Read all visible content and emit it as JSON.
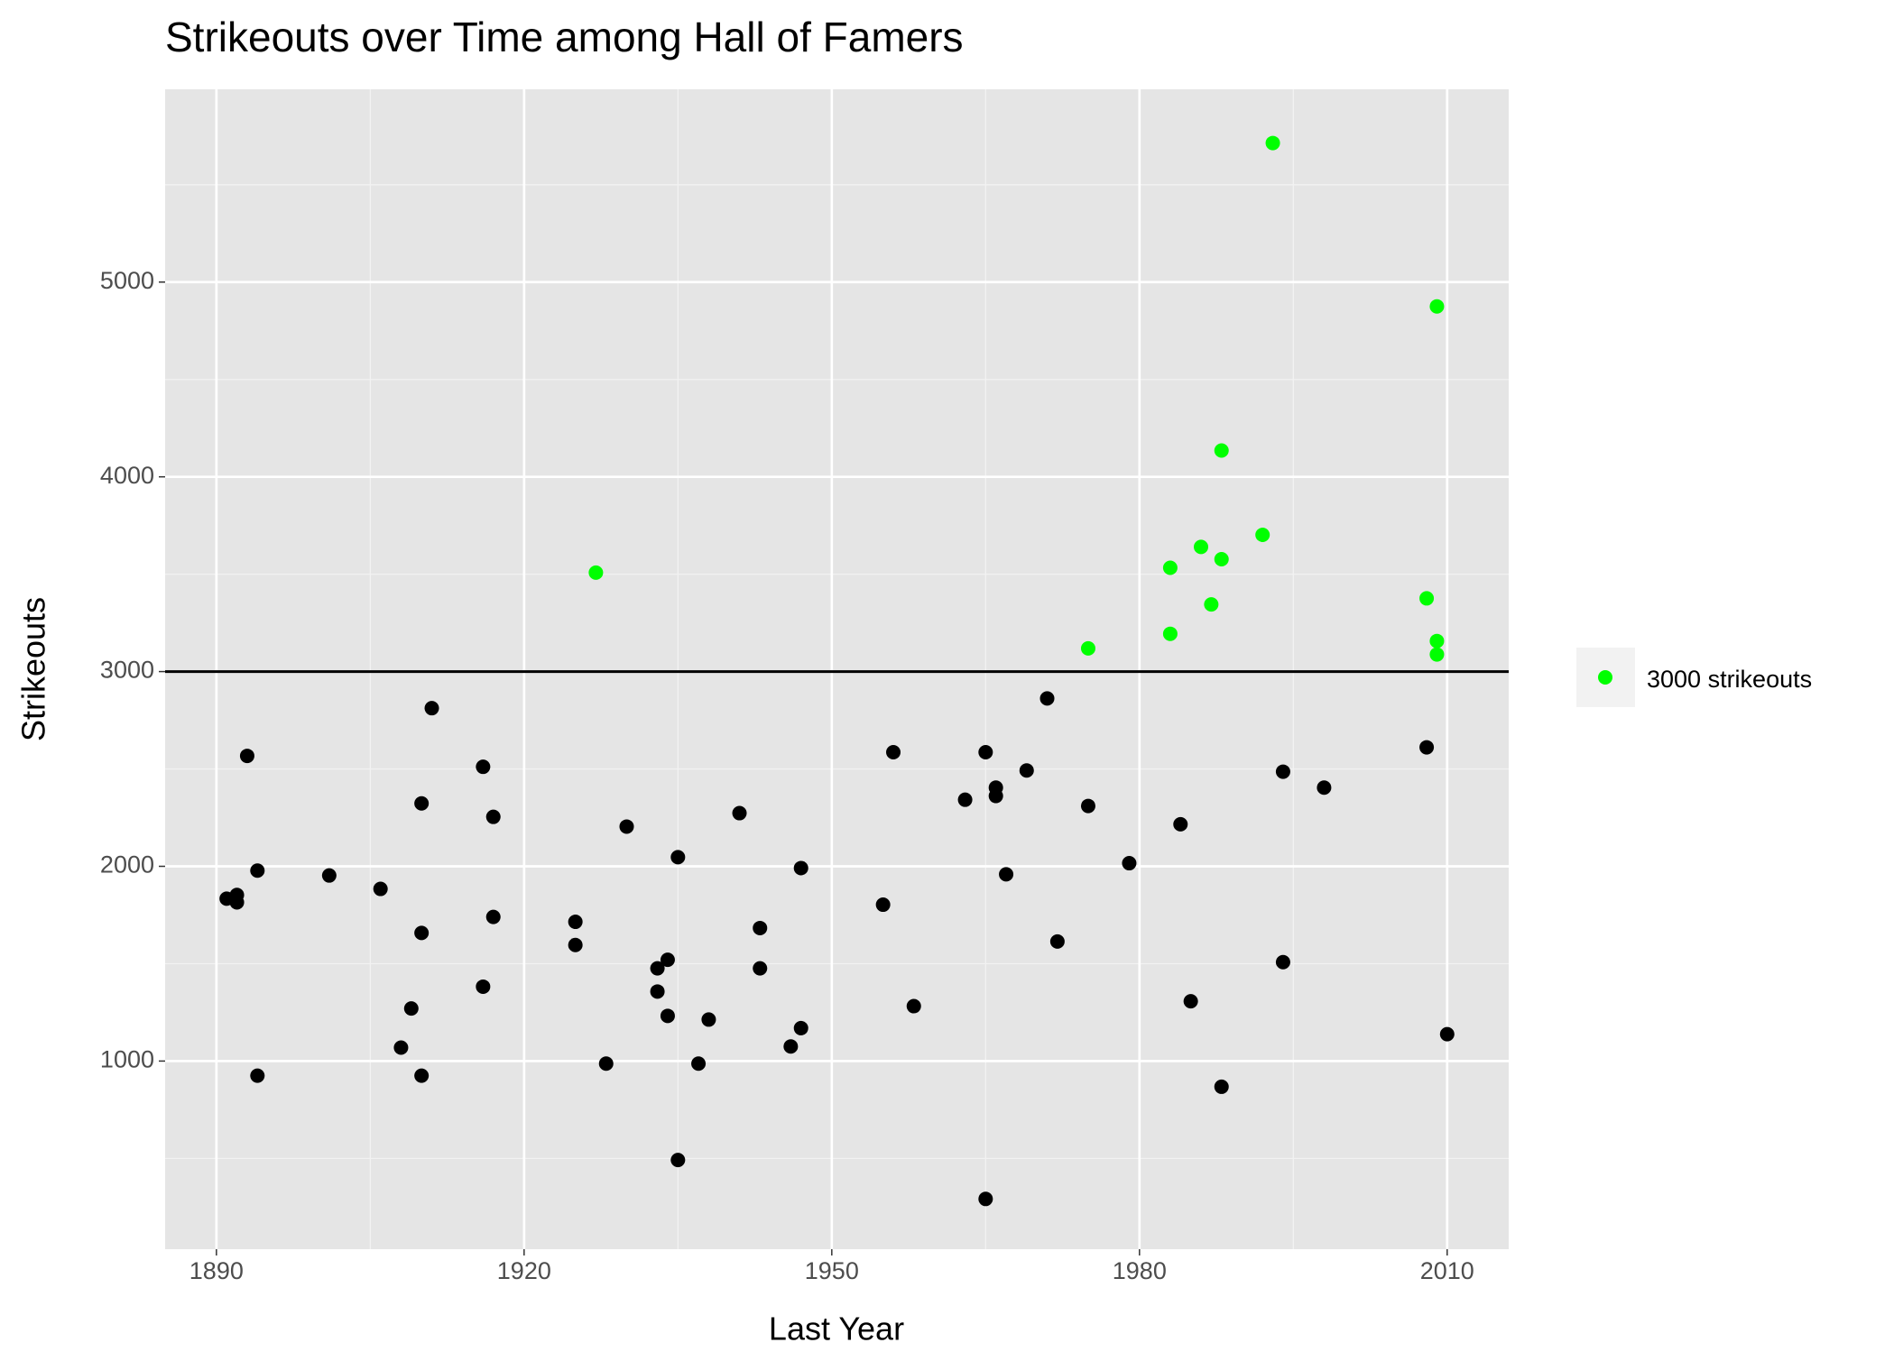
{
  "chart_data": {
    "type": "scatter",
    "title": "Strikeouts over Time among Hall of Famers",
    "x_label": "Last Year",
    "y_label": "Strikeouts",
    "xlim": [
      1885,
      2016
    ],
    "ylim": [
      34,
      5990
    ],
    "xticks": [
      1890,
      1920,
      1950,
      1980,
      2010
    ],
    "yticks": [
      1000,
      2000,
      3000,
      4000,
      5000
    ],
    "grid": true,
    "hline": {
      "value": 3000,
      "color": "#000000"
    },
    "legend_position": "right",
    "series": [
      {
        "color": "#000000",
        "x": [
          1891,
          1892,
          1892,
          1893,
          1894,
          1894,
          1901,
          1906,
          1908,
          1909,
          1910,
          1910,
          1910,
          1911,
          1916,
          1916,
          1917,
          1917,
          1925,
          1925,
          1928,
          1930,
          1933,
          1933,
          1934,
          1934,
          1935,
          1935,
          1937,
          1938,
          1941,
          1943,
          1943,
          1946,
          1947,
          1947,
          1955,
          1956,
          1958,
          1963,
          1965,
          1965,
          1966,
          1966,
          1967,
          1969,
          1971,
          1972,
          1975,
          1979,
          1984,
          1985,
          1988,
          1994,
          1994,
          1998,
          2008,
          2010
        ],
        "values": [
          1834,
          1853,
          1815,
          2567,
          1978,
          925,
          1953,
          1884,
          1069,
          1270,
          2323,
          1658,
          925,
          2812,
          2511,
          1382,
          2254,
          1740,
          1715,
          1596,
          987,
          2204,
          1476,
          1357,
          1520,
          1232,
          2047,
          492,
          987,
          1213,
          2273,
          1683,
          1476,
          1075,
          1991,
          1169,
          1803,
          2586,
          1282,
          2342,
          2586,
          292,
          2404,
          2361,
          1959,
          2492,
          2862,
          1614,
          2310,
          2016,
          2216,
          1307,
          868,
          2486,
          1508,
          2404,
          2611,
          1138
        ]
      },
      {
        "name": "3000 strikeouts",
        "color": "#00ff00",
        "x": [
          1927,
          1975,
          1983,
          1983,
          1986,
          1988,
          1988,
          1987,
          1992,
          1993,
          2009,
          2008,
          2009,
          2009
        ],
        "values": [
          3508,
          3119,
          3533,
          3194,
          3640,
          4135,
          3577,
          3345,
          3702,
          5714,
          4875,
          3376,
          3157,
          3088
        ]
      }
    ]
  }
}
